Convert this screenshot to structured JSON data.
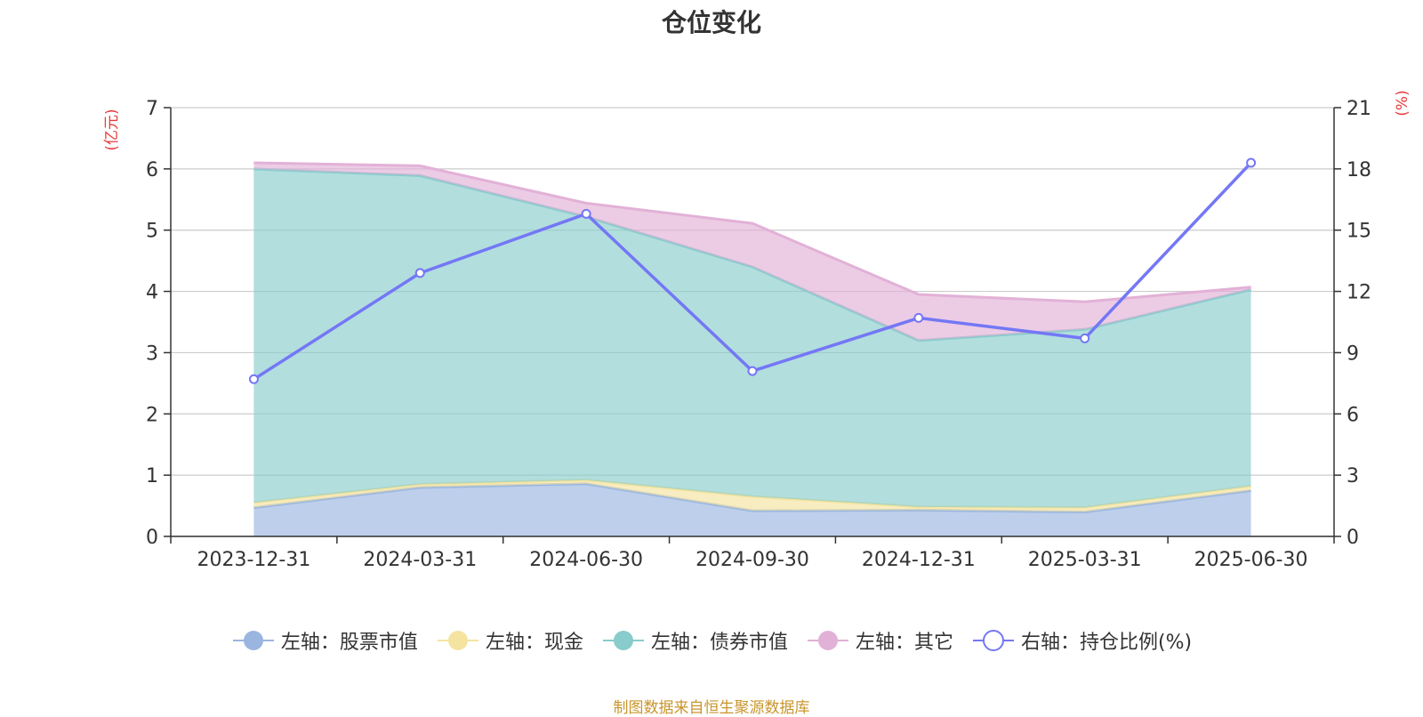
{
  "title": "仓位变化",
  "footer": "制图数据来自恒生聚源数据库",
  "colors": {
    "stock": "#9ab6e0",
    "cash": "#f5e4a0",
    "bond": "#88cccc",
    "other": "#e2b1d7",
    "ratio": "#7477f5",
    "unit": "#e83a3a"
  },
  "chart_data": {
    "type": "area",
    "stacked": true,
    "title": "仓位变化",
    "categories": [
      "2023-12-31",
      "2024-03-31",
      "2024-06-30",
      "2024-09-30",
      "2024-12-31",
      "2025-03-31",
      "2025-06-30"
    ],
    "y_left": {
      "label": "(亿元)",
      "min": 0,
      "max": 7,
      "ticks": [
        0,
        1,
        2,
        3,
        4,
        5,
        6,
        7
      ]
    },
    "y_right": {
      "label": "(%)",
      "min": 0,
      "max": 21,
      "ticks": [
        0,
        3,
        6,
        9,
        12,
        15,
        18,
        21
      ]
    },
    "grid": true,
    "legend_position": "bottom",
    "series": [
      {
        "key": "stock",
        "name": "左轴：股票市值",
        "axis": "left",
        "type": "area",
        "values": [
          0.47,
          0.8,
          0.86,
          0.42,
          0.43,
          0.4,
          0.75
        ]
      },
      {
        "key": "cash",
        "name": "左轴：现金",
        "axis": "left",
        "type": "area",
        "values": [
          0.08,
          0.05,
          0.06,
          0.23,
          0.05,
          0.07,
          0.07
        ]
      },
      {
        "key": "bond",
        "name": "左轴：债券市值",
        "axis": "left",
        "type": "area",
        "values": [
          5.45,
          5.04,
          4.3,
          3.75,
          2.72,
          2.91,
          3.21
        ]
      },
      {
        "key": "other",
        "name": "左轴：其它",
        "axis": "left",
        "type": "area",
        "values": [
          0.1,
          0.16,
          0.22,
          0.71,
          0.75,
          0.45,
          0.04
        ]
      },
      {
        "key": "ratio",
        "name": "右轴：持仓比例(%)",
        "axis": "right",
        "type": "line",
        "values": [
          7.7,
          12.9,
          15.8,
          8.1,
          10.7,
          9.7,
          18.3
        ]
      }
    ]
  }
}
